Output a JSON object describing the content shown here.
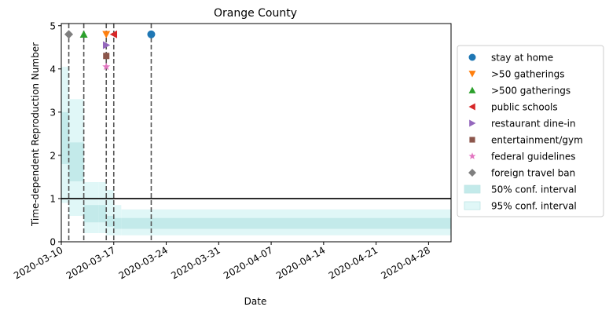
{
  "chart_data": {
    "type": "line",
    "title": "Orange County",
    "xlabel": "Date",
    "ylabel": "Time-dependent Reproduction Number",
    "xlim": [
      "2020-03-10",
      "2020-05-01"
    ],
    "ylim": [
      0,
      5.05
    ],
    "yticks": [
      0,
      1,
      2,
      3,
      4,
      5
    ],
    "xticks": [
      "2020-03-10",
      "2020-03-17",
      "2020-03-24",
      "2020-03-31",
      "2020-04-07",
      "2020-04-14",
      "2020-04-21",
      "2020-04-28"
    ],
    "reference_line": 1,
    "intervals": {
      "start": [
        "2020-03-10",
        "2020-03-11",
        "2020-03-13",
        "2020-03-15",
        "2020-03-16",
        "2020-03-17",
        "2020-03-18",
        "2020-03-22"
      ],
      "end": [
        "2020-03-11",
        "2020-03-13",
        "2020-03-15",
        "2020-03-16",
        "2020-03-17",
        "2020-03-18",
        "2020-03-22",
        "2020-05-01"
      ],
      "ci50_low": [
        1.8,
        1.4,
        0.45,
        0.45,
        0.35,
        0.3,
        0.3,
        0.3
      ],
      "ci50_high": [
        3.0,
        2.3,
        0.85,
        0.85,
        0.6,
        0.55,
        0.55,
        0.55
      ],
      "ci95_low": [
        0.9,
        0.6,
        0.2,
        0.2,
        0.15,
        0.15,
        0.15,
        0.15
      ],
      "ci95_high": [
        4.05,
        3.3,
        1.38,
        1.38,
        1.2,
        0.85,
        0.75,
        0.75
      ]
    },
    "interventions": [
      {
        "name": "stay at home",
        "date": "2020-03-22",
        "y": 4.8,
        "marker": "circle",
        "color": "#1f77b4"
      },
      {
        "name": ">50 gatherings",
        "date": "2020-03-16",
        "y": 4.8,
        "marker": "triangle-down",
        "color": "#ff7f0e"
      },
      {
        "name": ">500 gatherings",
        "date": "2020-03-13",
        "y": 4.8,
        "marker": "triangle-up",
        "color": "#2ca02c"
      },
      {
        "name": "public schools",
        "date": "2020-03-17",
        "y": 4.8,
        "marker": "triangle-left",
        "color": "#d62728"
      },
      {
        "name": "restaurant dine-in",
        "date": "2020-03-16",
        "y": 4.55,
        "marker": "triangle-right",
        "color": "#9467bd"
      },
      {
        "name": "entertainment/gym",
        "date": "2020-03-16",
        "y": 4.3,
        "marker": "square",
        "color": "#8c564b"
      },
      {
        "name": "federal guidelines",
        "date": "2020-03-16",
        "y": 4.05,
        "marker": "star",
        "color": "#e377c2"
      },
      {
        "name": "foreign travel ban",
        "date": "2020-03-11",
        "y": 4.8,
        "marker": "diamond",
        "color": "#7f7f7f"
      }
    ],
    "vlines": [
      "2020-03-11",
      "2020-03-13",
      "2020-03-16",
      "2020-03-17",
      "2020-03-22"
    ],
    "legend_position": "right",
    "legend": [
      {
        "label": "stay at home",
        "symbol": "circle",
        "color": "#1f77b4"
      },
      {
        "label": ">50 gatherings",
        "symbol": "triangle-down",
        "color": "#ff7f0e"
      },
      {
        "label": ">500 gatherings",
        "symbol": "triangle-up",
        "color": "#2ca02c"
      },
      {
        "label": "public schools",
        "symbol": "triangle-left",
        "color": "#d62728"
      },
      {
        "label": "restaurant dine-in",
        "symbol": "triangle-right",
        "color": "#9467bd"
      },
      {
        "label": "entertainment/gym",
        "symbol": "square",
        "color": "#8c564b"
      },
      {
        "label": "federal guidelines",
        "symbol": "star",
        "color": "#e377c2"
      },
      {
        "label": "foreign travel ban",
        "symbol": "diamond",
        "color": "#7f7f7f"
      },
      {
        "label": "50% conf. interval",
        "symbol": "patch",
        "color": "#c3eaea"
      },
      {
        "label": "95% conf. interval",
        "symbol": "patch",
        "color": "#e0f7f7"
      }
    ],
    "colors": {
      "ci50": "#c3eaea",
      "ci95": "#e0f7f7",
      "vline": "#555555",
      "reference": "#000000"
    }
  }
}
